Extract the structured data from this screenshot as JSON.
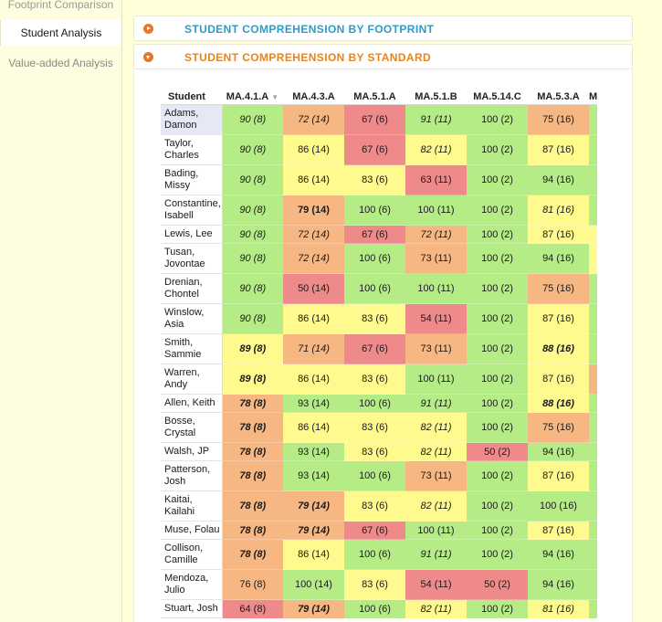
{
  "sidebar": {
    "items": [
      {
        "label": "Footprint Comparison"
      },
      {
        "label": "Student Analysis"
      },
      {
        "label": "Value-added Analysis"
      }
    ]
  },
  "panels": {
    "footprint": {
      "title": "STUDENT COMPREHENSION BY FOOTPRINT",
      "state": "collapsed"
    },
    "standard": {
      "title": "STUDENT COMPREHENSION BY STANDARD",
      "state": "expanded"
    }
  },
  "colors": {
    "green": "#b5ec86",
    "yellow": "#fffa8e",
    "orange": "#f6b783",
    "red": "#ee8b8a"
  },
  "table": {
    "headers": [
      "Student",
      "MA.4.1.A",
      "MA.4.3.A",
      "MA.5.1.A",
      "MA.5.1.B",
      "MA.5.14.C",
      "MA.5.3.A",
      "M"
    ],
    "sorted_column": "MA.4.1.A",
    "rows": [
      {
        "name": "Adams, Damon",
        "selected": true,
        "cells": [
          {
            "v": "90 (8)",
            "c": "g",
            "s": "i"
          },
          {
            "v": "72 (14)",
            "c": "o",
            "s": "i"
          },
          {
            "v": "67 (6)",
            "c": "r",
            "s": ""
          },
          {
            "v": "91 (11)",
            "c": "g",
            "s": "i"
          },
          {
            "v": "100 (2)",
            "c": "g",
            "s": ""
          },
          {
            "v": "75 (16)",
            "c": "o",
            "s": ""
          },
          {
            "c": "g"
          }
        ]
      },
      {
        "name": "Taylor, Charles",
        "cells": [
          {
            "v": "90 (8)",
            "c": "g",
            "s": "i"
          },
          {
            "v": "86 (14)",
            "c": "y",
            "s": ""
          },
          {
            "v": "67 (6)",
            "c": "r",
            "s": ""
          },
          {
            "v": "82 (11)",
            "c": "y",
            "s": "i"
          },
          {
            "v": "100 (2)",
            "c": "g",
            "s": ""
          },
          {
            "v": "87 (16)",
            "c": "y",
            "s": ""
          },
          {
            "c": "g"
          }
        ]
      },
      {
        "name": "Bading, Missy",
        "cells": [
          {
            "v": "90 (8)",
            "c": "g",
            "s": "i"
          },
          {
            "v": "86 (14)",
            "c": "y",
            "s": ""
          },
          {
            "v": "83 (6)",
            "c": "y",
            "s": ""
          },
          {
            "v": "63 (11)",
            "c": "r",
            "s": ""
          },
          {
            "v": "100 (2)",
            "c": "g",
            "s": ""
          },
          {
            "v": "94 (16)",
            "c": "g",
            "s": ""
          },
          {
            "c": "g"
          }
        ]
      },
      {
        "name": "Constantine, Isabell",
        "cells": [
          {
            "v": "90 (8)",
            "c": "g",
            "s": "i"
          },
          {
            "v": "79 (14)",
            "c": "o",
            "s": "b"
          },
          {
            "v": "100 (6)",
            "c": "g",
            "s": ""
          },
          {
            "v": "100 (11)",
            "c": "g",
            "s": ""
          },
          {
            "v": "100 (2)",
            "c": "g",
            "s": ""
          },
          {
            "v": "81 (16)",
            "c": "y",
            "s": "i"
          },
          {
            "c": "g"
          }
        ]
      },
      {
        "name": "Lewis, Lee",
        "cells": [
          {
            "v": "90 (8)",
            "c": "g",
            "s": "i"
          },
          {
            "v": "72 (14)",
            "c": "o",
            "s": "i"
          },
          {
            "v": "67 (6)",
            "c": "r",
            "s": ""
          },
          {
            "v": "72 (11)",
            "c": "o",
            "s": "i"
          },
          {
            "v": "100 (2)",
            "c": "g",
            "s": ""
          },
          {
            "v": "87 (16)",
            "c": "y",
            "s": ""
          },
          {
            "c": "y"
          }
        ]
      },
      {
        "name": "Tusan, Jovontae",
        "cells": [
          {
            "v": "90 (8)",
            "c": "g",
            "s": "i"
          },
          {
            "v": "72 (14)",
            "c": "o",
            "s": "i"
          },
          {
            "v": "100 (6)",
            "c": "g",
            "s": ""
          },
          {
            "v": "73 (11)",
            "c": "o",
            "s": ""
          },
          {
            "v": "100 (2)",
            "c": "g",
            "s": ""
          },
          {
            "v": "94 (16)",
            "c": "g",
            "s": ""
          },
          {
            "c": "y"
          }
        ]
      },
      {
        "name": "Drenian, Chontel",
        "cells": [
          {
            "v": "90 (8)",
            "c": "g",
            "s": "i"
          },
          {
            "v": "50 (14)",
            "c": "r",
            "s": ""
          },
          {
            "v": "100 (6)",
            "c": "g",
            "s": ""
          },
          {
            "v": "100 (11)",
            "c": "g",
            "s": ""
          },
          {
            "v": "100 (2)",
            "c": "g",
            "s": ""
          },
          {
            "v": "75 (16)",
            "c": "o",
            "s": ""
          },
          {
            "c": "g"
          }
        ]
      },
      {
        "name": "Winslow, Asia",
        "cells": [
          {
            "v": "90 (8)",
            "c": "g",
            "s": "i"
          },
          {
            "v": "86 (14)",
            "c": "y",
            "s": ""
          },
          {
            "v": "83 (6)",
            "c": "y",
            "s": ""
          },
          {
            "v": "54 (11)",
            "c": "r",
            "s": ""
          },
          {
            "v": "100 (2)",
            "c": "g",
            "s": ""
          },
          {
            "v": "87 (16)",
            "c": "y",
            "s": ""
          },
          {
            "c": "g"
          }
        ]
      },
      {
        "name": "Smith, Sammie",
        "cells": [
          {
            "v": "89 (8)",
            "c": "y",
            "s": "bi"
          },
          {
            "v": "71 (14)",
            "c": "o",
            "s": "i"
          },
          {
            "v": "67 (6)",
            "c": "r",
            "s": ""
          },
          {
            "v": "73 (11)",
            "c": "o",
            "s": ""
          },
          {
            "v": "100 (2)",
            "c": "g",
            "s": ""
          },
          {
            "v": "88 (16)",
            "c": "y",
            "s": "bi"
          },
          {
            "c": "g"
          }
        ]
      },
      {
        "name": "Warren, Andy",
        "cells": [
          {
            "v": "89 (8)",
            "c": "y",
            "s": "bi"
          },
          {
            "v": "86 (14)",
            "c": "y",
            "s": ""
          },
          {
            "v": "83 (6)",
            "c": "y",
            "s": ""
          },
          {
            "v": "100 (11)",
            "c": "g",
            "s": ""
          },
          {
            "v": "100 (2)",
            "c": "g",
            "s": ""
          },
          {
            "v": "87 (16)",
            "c": "y",
            "s": ""
          },
          {
            "c": "o"
          }
        ]
      },
      {
        "name": "Allen, Keith",
        "cells": [
          {
            "v": "78 (8)",
            "c": "o",
            "s": "bi"
          },
          {
            "v": "93 (14)",
            "c": "g",
            "s": ""
          },
          {
            "v": "100 (6)",
            "c": "g",
            "s": ""
          },
          {
            "v": "91 (11)",
            "c": "g",
            "s": "i"
          },
          {
            "v": "100 (2)",
            "c": "g",
            "s": ""
          },
          {
            "v": "88 (16)",
            "c": "y",
            "s": "bi"
          },
          {
            "c": "g"
          }
        ]
      },
      {
        "name": "Bosse, Crystal",
        "cells": [
          {
            "v": "78 (8)",
            "c": "o",
            "s": "bi"
          },
          {
            "v": "86 (14)",
            "c": "y",
            "s": ""
          },
          {
            "v": "83 (6)",
            "c": "y",
            "s": ""
          },
          {
            "v": "82 (11)",
            "c": "y",
            "s": "i"
          },
          {
            "v": "100 (2)",
            "c": "g",
            "s": ""
          },
          {
            "v": "75 (16)",
            "c": "o",
            "s": ""
          },
          {
            "c": "g"
          }
        ]
      },
      {
        "name": "Walsh, JP",
        "cells": [
          {
            "v": "78 (8)",
            "c": "o",
            "s": "bi"
          },
          {
            "v": "93 (14)",
            "c": "g",
            "s": ""
          },
          {
            "v": "83 (6)",
            "c": "y",
            "s": ""
          },
          {
            "v": "82 (11)",
            "c": "y",
            "s": "i"
          },
          {
            "v": "50 (2)",
            "c": "r",
            "s": ""
          },
          {
            "v": "94 (16)",
            "c": "g",
            "s": ""
          },
          {
            "c": "g"
          }
        ]
      },
      {
        "name": "Patterson, Josh",
        "cells": [
          {
            "v": "78 (8)",
            "c": "o",
            "s": "bi"
          },
          {
            "v": "93 (14)",
            "c": "g",
            "s": ""
          },
          {
            "v": "100 (6)",
            "c": "g",
            "s": ""
          },
          {
            "v": "73 (11)",
            "c": "o",
            "s": ""
          },
          {
            "v": "100 (2)",
            "c": "g",
            "s": ""
          },
          {
            "v": "87 (16)",
            "c": "y",
            "s": ""
          },
          {
            "c": "g"
          }
        ]
      },
      {
        "name": "Kaitai, Kailahi",
        "cells": [
          {
            "v": "78 (8)",
            "c": "o",
            "s": "bi"
          },
          {
            "v": "79 (14)",
            "c": "o",
            "s": "bi"
          },
          {
            "v": "83 (6)",
            "c": "y",
            "s": ""
          },
          {
            "v": "82 (11)",
            "c": "y",
            "s": "i"
          },
          {
            "v": "100 (2)",
            "c": "g",
            "s": ""
          },
          {
            "v": "100 (16)",
            "c": "g",
            "s": ""
          },
          {
            "c": "g"
          }
        ]
      },
      {
        "name": "Muse, Folau",
        "cells": [
          {
            "v": "78 (8)",
            "c": "o",
            "s": "bi"
          },
          {
            "v": "79 (14)",
            "c": "o",
            "s": "bi"
          },
          {
            "v": "67 (6)",
            "c": "r",
            "s": ""
          },
          {
            "v": "100 (11)",
            "c": "g",
            "s": ""
          },
          {
            "v": "100 (2)",
            "c": "g",
            "s": ""
          },
          {
            "v": "87 (16)",
            "c": "y",
            "s": ""
          },
          {
            "c": "g"
          }
        ]
      },
      {
        "name": "Collison, Camille",
        "cells": [
          {
            "v": "78 (8)",
            "c": "o",
            "s": "bi"
          },
          {
            "v": "86 (14)",
            "c": "y",
            "s": ""
          },
          {
            "v": "100 (6)",
            "c": "g",
            "s": ""
          },
          {
            "v": "91 (11)",
            "c": "g",
            "s": "i"
          },
          {
            "v": "100 (2)",
            "c": "g",
            "s": ""
          },
          {
            "v": "94 (16)",
            "c": "g",
            "s": ""
          },
          {
            "c": "g"
          }
        ]
      },
      {
        "name": "Mendoza, Julio",
        "cells": [
          {
            "v": "76 (8)",
            "c": "o",
            "s": ""
          },
          {
            "v": "100 (14)",
            "c": "g",
            "s": ""
          },
          {
            "v": "83 (6)",
            "c": "y",
            "s": ""
          },
          {
            "v": "54 (11)",
            "c": "r",
            "s": ""
          },
          {
            "v": "50 (2)",
            "c": "r",
            "s": ""
          },
          {
            "v": "94 (16)",
            "c": "g",
            "s": ""
          },
          {
            "c": "g"
          }
        ]
      },
      {
        "name": "Stuart, Josh",
        "cells": [
          {
            "v": "64 (8)",
            "c": "r",
            "s": ""
          },
          {
            "v": "79 (14)",
            "c": "o",
            "s": "bi"
          },
          {
            "v": "100 (6)",
            "c": "g",
            "s": ""
          },
          {
            "v": "82 (11)",
            "c": "y",
            "s": "i"
          },
          {
            "v": "100 (2)",
            "c": "g",
            "s": ""
          },
          {
            "v": "81 (16)",
            "c": "y",
            "s": "i"
          },
          {
            "c": "g"
          }
        ]
      }
    ]
  }
}
